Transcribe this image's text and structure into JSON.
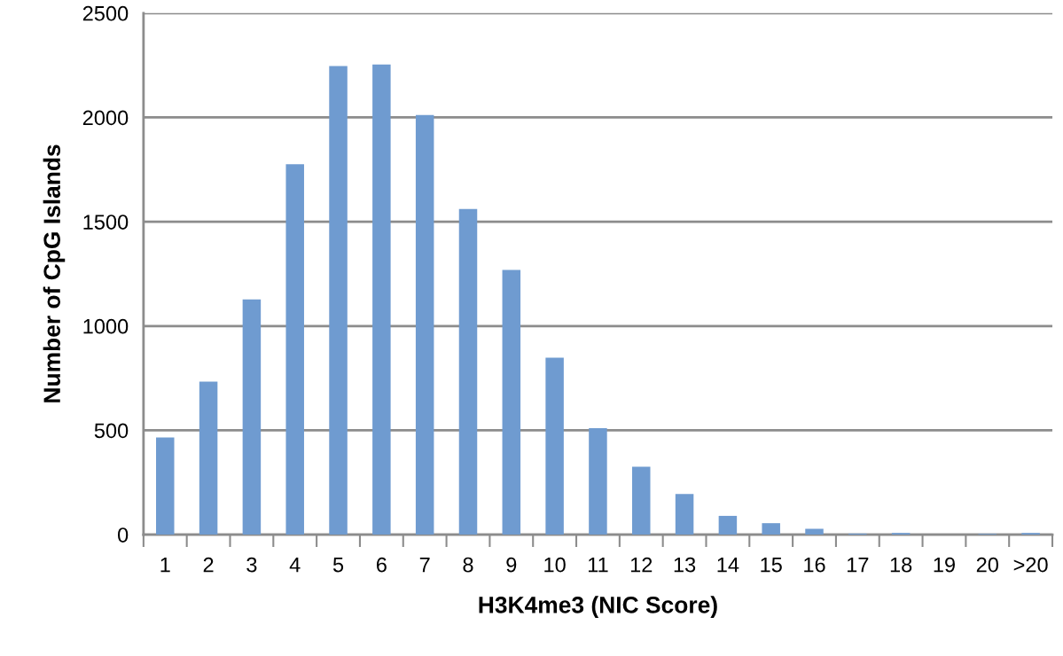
{
  "chart_data": {
    "type": "bar",
    "xlabel": "H3K4me3 (NIC Score)",
    "ylabel": "Number of CpG Islands",
    "categories": [
      "1",
      "2",
      "3",
      "4",
      "5",
      "6",
      "7",
      "8",
      "9",
      "10",
      "11",
      "12",
      "13",
      "14",
      "15",
      "16",
      "17",
      "18",
      "19",
      "20",
      ">20"
    ],
    "values": [
      466,
      734,
      1128,
      1776,
      2246,
      2254,
      2012,
      1561,
      1269,
      848,
      510,
      325,
      195,
      90,
      55,
      28,
      5,
      8,
      0,
      4,
      8
    ],
    "color": "#6f9bd0",
    "ylim": [
      0,
      2500
    ],
    "yticks": [
      0,
      500,
      1000,
      1500,
      2000,
      2500
    ],
    "grid": "y"
  }
}
